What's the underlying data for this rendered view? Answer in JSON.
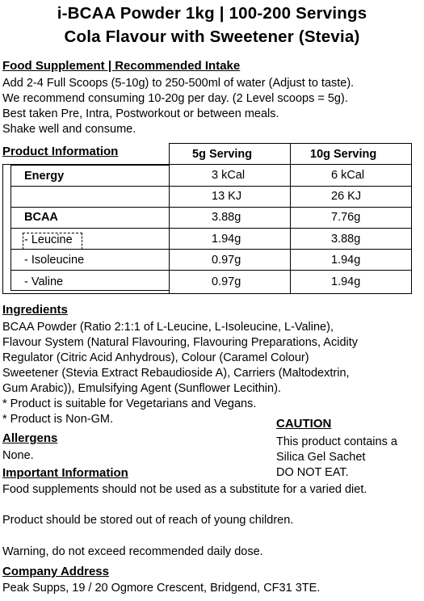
{
  "title": {
    "line1": "i-BCAA Powder 1kg | 100-200 Servings",
    "line2": "Cola Flavour with Sweetener (Stevia)"
  },
  "supplement": {
    "heading": "Food Supplement | Recommended Intake",
    "lines": [
      "Add 2-4 Full Scoops (5-10g) to 250-500ml of water (Adjust to taste).",
      "We recommend consuming 10-20g per day. (2 Level scoops = 5g).",
      "Best taken Pre, Intra, Postworkout or between meals.",
      "Shake well and consume."
    ]
  },
  "product_info": {
    "heading": "Product Information",
    "col2": "5g Serving",
    "col3": "10g Serving",
    "rows": [
      {
        "label": "Energy",
        "bold": true,
        "v5": "3 kCal",
        "v10": "6 kCal"
      },
      {
        "label": "",
        "bold": false,
        "v5": "13 KJ",
        "v10": "26 KJ"
      },
      {
        "label": "BCAA",
        "bold": true,
        "v5": "3.88g",
        "v10": "7.76g"
      },
      {
        "label": "- Leucine",
        "bold": false,
        "v5": "1.94g",
        "v10": "3.88g"
      },
      {
        "label": "- Isoleucine",
        "bold": false,
        "v5": "0.97g",
        "v10": "1.94g"
      },
      {
        "label": "- Valine",
        "bold": false,
        "v5": "0.97g",
        "v10": "1.94g"
      }
    ]
  },
  "ingredients": {
    "heading": "Ingredients",
    "lines": [
      "BCAA Powder (Ratio 2:1:1 of L-Leucine, L-Isoleucine, L-Valine),",
      "Flavour System (Natural Flavouring, Flavouring Preparations, Acidity",
      "Regulator (Citric Acid Anhydrous), Colour (Caramel Colour)",
      "Sweetener (Stevia Extract Rebaudioside A), Carriers (Maltodextrin,",
      "Gum Arabic)), Emulsifying Agent (Sunflower Lecithin).",
      "* Product is suitable for Vegetarians and Vegans.",
      "* Product is Non-GM."
    ]
  },
  "caution": {
    "heading": "CAUTION",
    "lines": [
      "This product contains a",
      "Silica Gel Sachet",
      "DO NOT EAT."
    ]
  },
  "allergens": {
    "heading": "Allergens",
    "text": "None."
  },
  "important": {
    "heading": "Important Information",
    "lines": [
      "Food supplements should not be used as a substitute for a varied diet.",
      "Product should be stored out of reach of young children.",
      "Warning, do not exceed recommended daily dose."
    ]
  },
  "company": {
    "heading": "Company Address",
    "text": "Peak Supps, 19 / 20 Ogmore Crescent, Bridgend, CF31 3TE."
  }
}
